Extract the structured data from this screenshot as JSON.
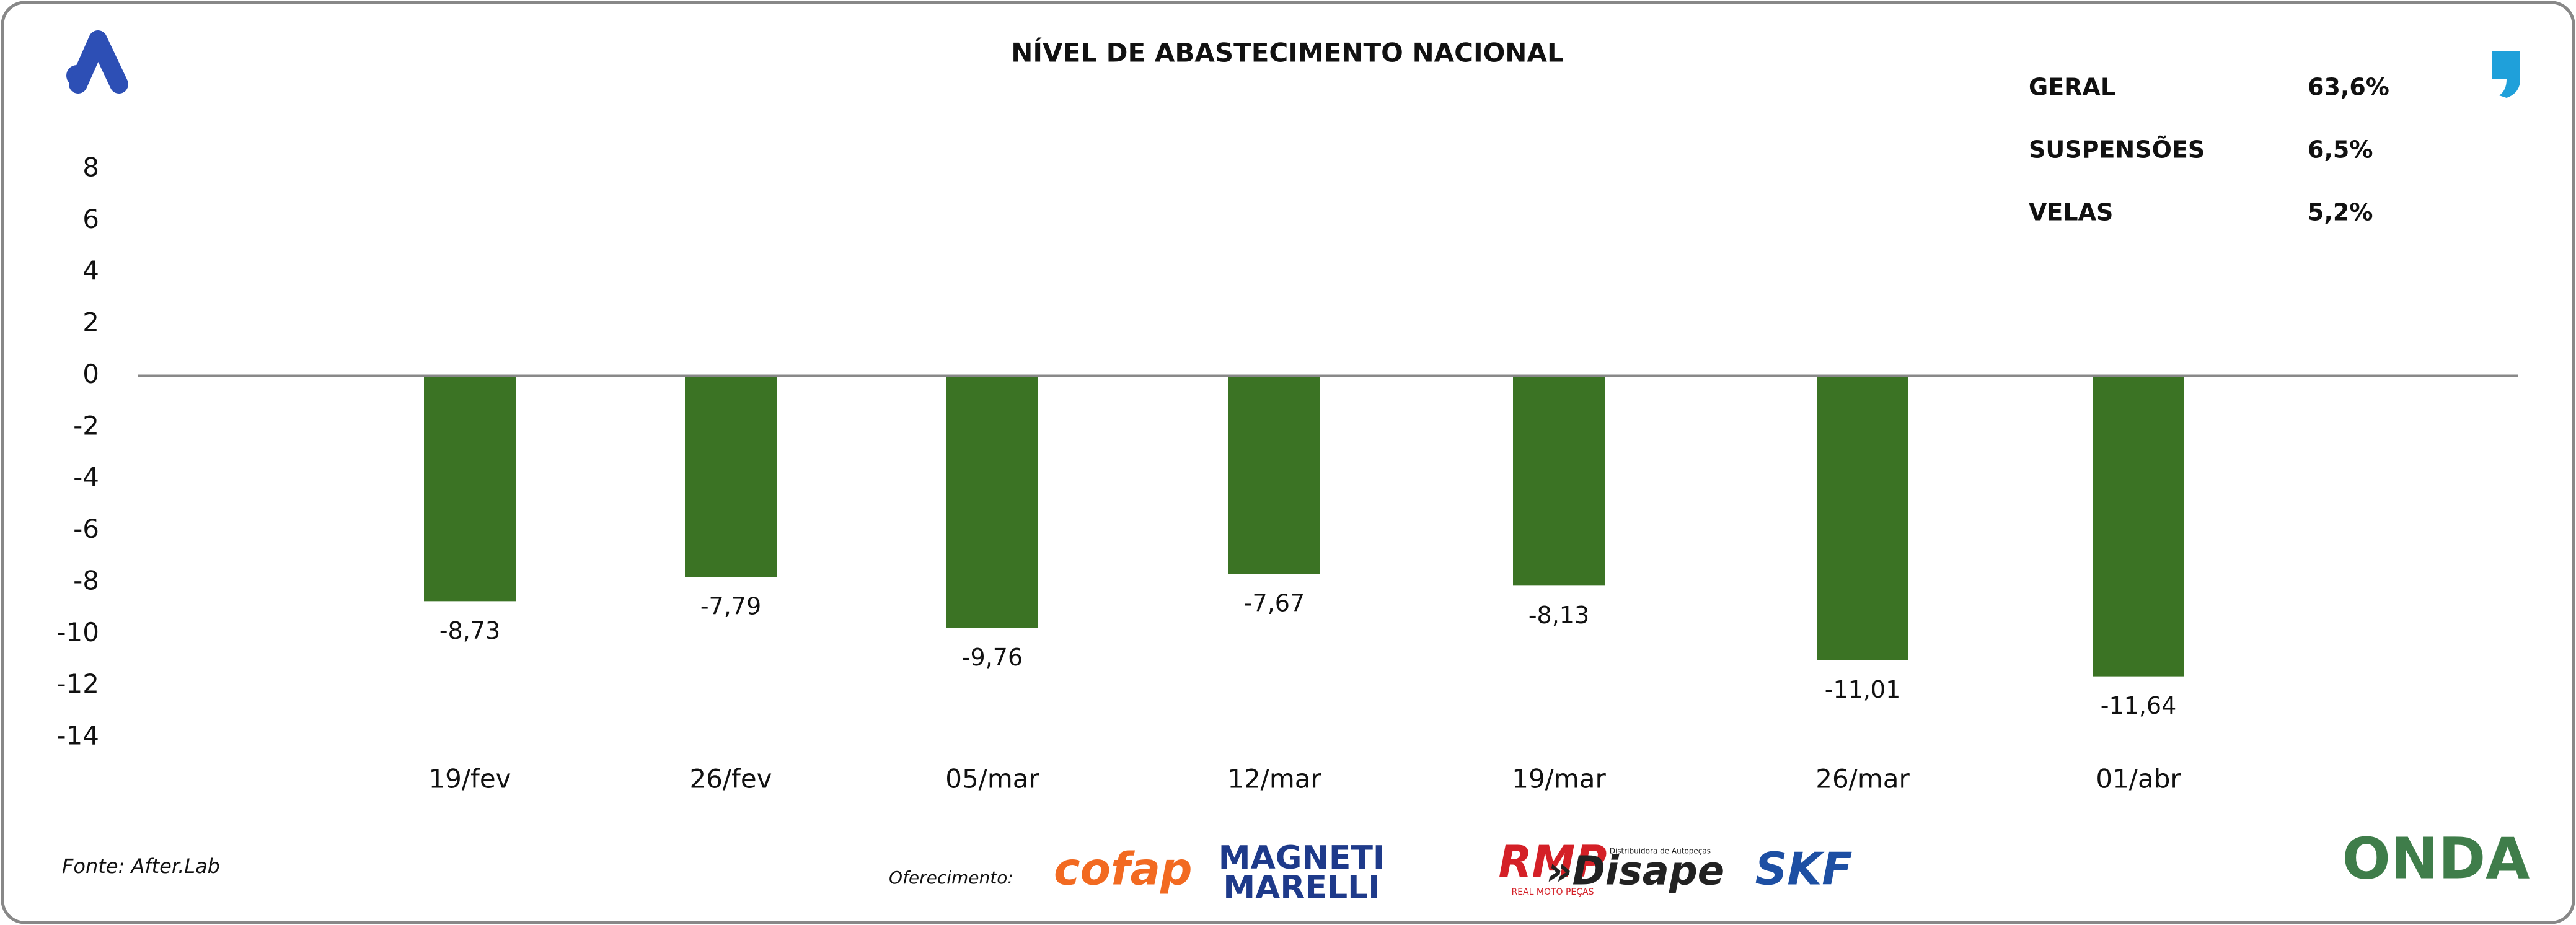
{
  "chart_data": {
    "type": "bar",
    "title": "NÍVEL DE ABASTECIMENTO NACIONAL",
    "categories": [
      "19/fev",
      "26/fev",
      "05/mar",
      "12/mar",
      "19/mar",
      "26/mar",
      "01/abr"
    ],
    "values": [
      -8.73,
      -7.79,
      -9.76,
      -7.67,
      -8.13,
      -11.01,
      -11.64
    ],
    "value_labels": [
      "-8,73",
      "-7,79",
      "-9,76",
      "-7,67",
      "-8,13",
      "-11,01",
      "-11,64"
    ],
    "color": "#3b7324",
    "ylim": [
      -14,
      8
    ],
    "yticks": [
      8,
      6,
      4,
      2,
      0,
      -2,
      -4,
      -6,
      -8,
      -10,
      -12,
      -14
    ],
    "grid": false
  },
  "summary": [
    [
      "GERAL",
      "63,6%"
    ],
    [
      "SUSPENSÕES",
      "6,5%"
    ],
    [
      "VELAS",
      "5,2%"
    ]
  ],
  "footer": {
    "source": "Fonte: After.Lab",
    "sponsor": "Oferecimento:",
    "logos": [
      "cofap",
      "MAGNETI",
      "MARELLI",
      "RMP",
      "REAL MOTO PEÇAS",
      "»Disape",
      "Distribuidora de Autopeças",
      "SKF",
      "ONDA"
    ]
  }
}
